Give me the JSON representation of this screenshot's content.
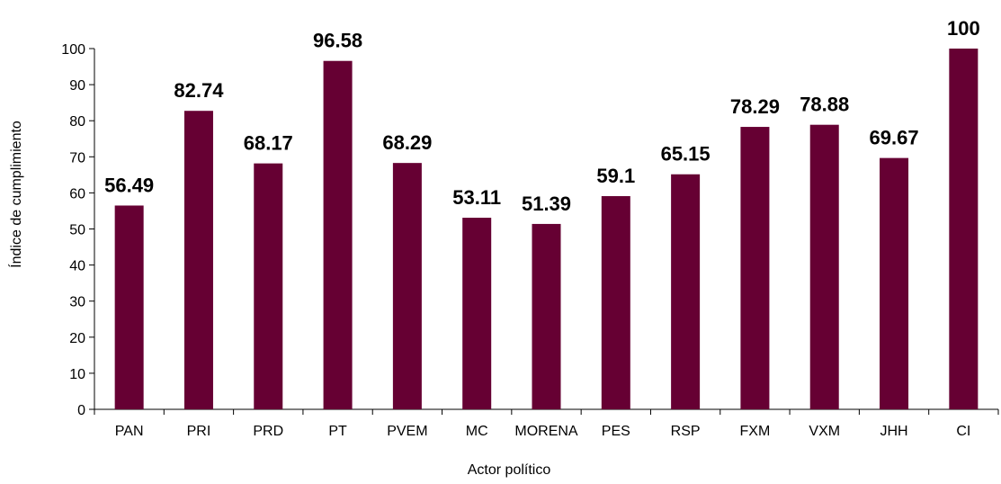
{
  "chart_data": {
    "type": "bar",
    "categories": [
      "PAN",
      "PRI",
      "PRD",
      "PT",
      "PVEM",
      "MC",
      "MORENA",
      "PES",
      "RSP",
      "FXM",
      "VXM",
      "JHH",
      "CI"
    ],
    "values": [
      56.49,
      82.74,
      68.17,
      96.58,
      68.29,
      53.11,
      51.39,
      59.1,
      65.15,
      78.29,
      78.88,
      69.67,
      100
    ],
    "data_labels": [
      "56.49",
      "82.74",
      "68.17",
      "96.58",
      "68.29",
      "53.11",
      "51.39",
      "59.1",
      "65.15",
      "78.29",
      "78.88",
      "69.67",
      "100"
    ],
    "title": "",
    "xlabel": "Actor político",
    "ylabel": "Índice de cumplimiento",
    "ylim": [
      0,
      100
    ],
    "yticks": [
      0,
      10,
      20,
      30,
      40,
      50,
      60,
      70,
      80,
      90,
      100
    ],
    "grid": false,
    "legend": "none",
    "colors": {
      "bar": "#660033",
      "axis": "#000000"
    }
  }
}
